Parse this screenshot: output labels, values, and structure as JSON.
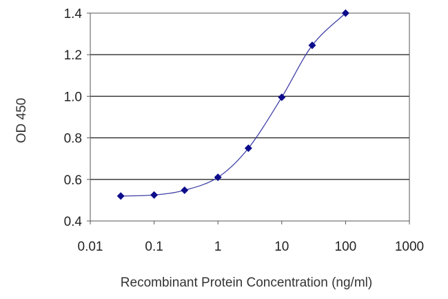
{
  "chart_data": {
    "type": "line",
    "title": "",
    "xlabel": "Recombinant Protein Concentration (ng/ml)",
    "ylabel": "OD 450",
    "x_scale": "log",
    "xlim": [
      0.01,
      1000
    ],
    "ylim": [
      0.4,
      1.4
    ],
    "x_ticks": [
      0.01,
      0.1,
      1,
      10,
      100,
      1000
    ],
    "x_tick_labels": [
      "0.01",
      "0.1",
      "1",
      "10",
      "100",
      "1000"
    ],
    "y_ticks": [
      0.4,
      0.6,
      0.8,
      1.0,
      1.2,
      1.4
    ],
    "y_tick_labels": [
      "0.4",
      "0.6",
      "0.8",
      "1.0",
      "1.2",
      "1.4"
    ],
    "grid": "horizontal",
    "legend": "none",
    "series": [
      {
        "x": [
          0.03,
          0.1,
          0.3,
          1,
          3,
          10,
          30,
          100
        ],
        "y": [
          0.52,
          0.525,
          0.548,
          0.61,
          0.75,
          0.995,
          1.245,
          1.4
        ],
        "color": "#3f3fa6",
        "marker_color": "#0d0d8c"
      }
    ]
  }
}
